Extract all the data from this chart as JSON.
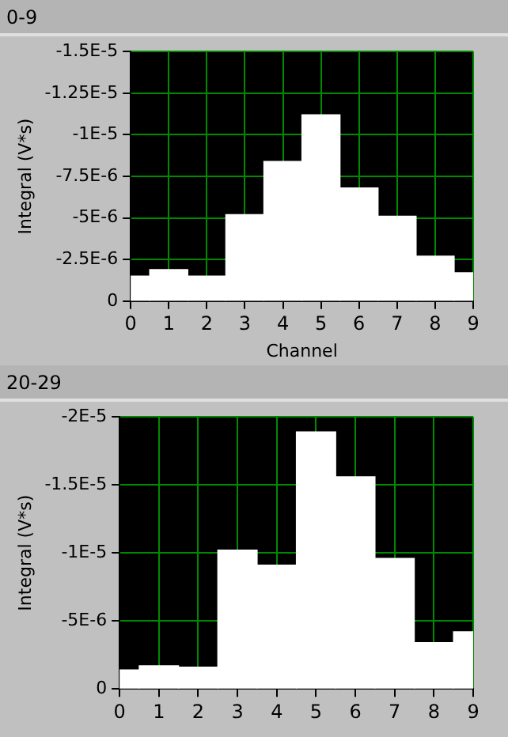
{
  "chart_data": [
    {
      "type": "bar",
      "title": "0-9",
      "xlabel": "Channel",
      "ylabel": "Integral (V*s)",
      "x": [
        0,
        1,
        2,
        3,
        4,
        5,
        6,
        7,
        8,
        9
      ],
      "values": [
        -1.5e-06,
        -1.9e-06,
        -1.5e-06,
        -5.2e-06,
        -8.4e-06,
        -1.12e-05,
        -6.8e-06,
        -5.1e-06,
        -2.7e-06,
        -1.7e-06
      ],
      "color": "#ffffff",
      "xlim": [
        0,
        9
      ],
      "xticks": [
        0,
        1,
        2,
        3,
        4,
        5,
        6,
        7,
        8,
        9
      ],
      "ylim": [
        0,
        -1.5e-05
      ],
      "yticks": [
        0,
        {
          "value": -2.5e-06,
          "label": "-2.5E-6"
        },
        {
          "value": -5e-06,
          "label": "-5E-6"
        },
        {
          "value": -7.5e-06,
          "label": "-7.5E-6"
        },
        {
          "value": -1e-05,
          "label": "-1E-5"
        },
        {
          "value": -1.25e-05,
          "label": "-1.25E-5"
        },
        {
          "value": -1.5e-05,
          "label": "-1.5E-5"
        }
      ],
      "grid": true,
      "legend": false
    },
    {
      "type": "bar",
      "title": "20-29",
      "ylabel": "Integral (V*s)",
      "x": [
        0,
        1,
        2,
        3,
        4,
        5,
        6,
        7,
        8,
        9
      ],
      "values": [
        -1.4e-06,
        -1.7e-06,
        -1.6e-06,
        -1.02e-05,
        -9.1e-06,
        -1.89e-05,
        -1.56e-05,
        -9.6e-06,
        -3.4e-06,
        -4.2e-06
      ],
      "color": "#ffffff",
      "xlim": [
        0,
        9
      ],
      "xticks": [
        0,
        1,
        2,
        3,
        4,
        5,
        6,
        7,
        8,
        9
      ],
      "ylim": [
        0,
        -2e-05
      ],
      "yticks": [
        0,
        {
          "value": -5e-06,
          "label": "-5E-6"
        },
        {
          "value": -1e-05,
          "label": "-1E-5"
        },
        {
          "value": -1.5e-05,
          "label": "-1.5E-5"
        },
        {
          "value": -2e-05,
          "label": "-2E-5"
        }
      ],
      "grid": true,
      "legend": false
    }
  ]
}
